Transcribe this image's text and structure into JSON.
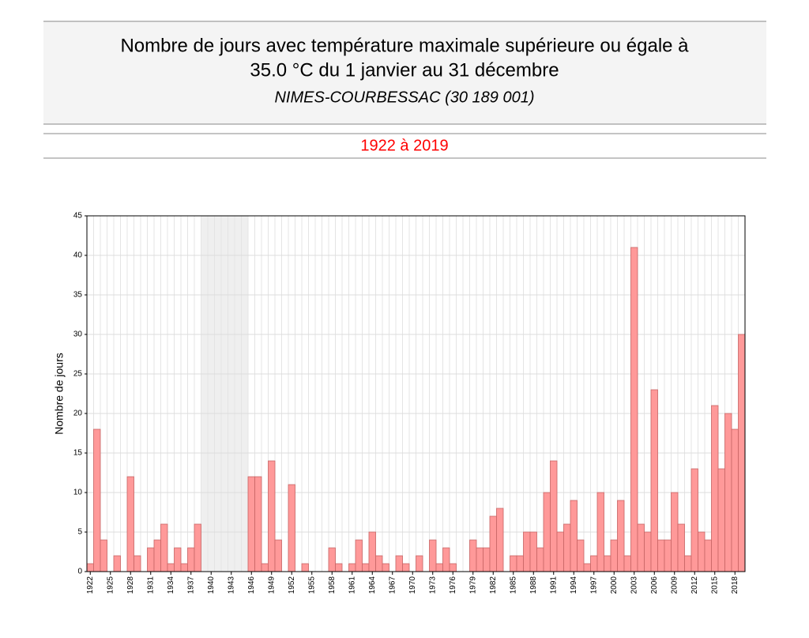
{
  "chart_data": {
    "type": "bar",
    "title_lines": [
      "Nombre de jours avec température maximale supérieure ou égale à",
      "35.0 °C du 1 janvier au 31 décembre"
    ],
    "subtitle": "NIMES-COURBESSAC (30 189 001)",
    "period": "1922 à 2019",
    "y_label": "Nombre de jours",
    "categories": [
      "1922",
      null,
      null,
      "1925",
      null,
      null,
      "1928",
      null,
      null,
      "1931",
      null,
      null,
      "1934",
      null,
      null,
      "1937",
      null,
      null,
      "1940",
      null,
      null,
      "1943",
      null,
      null,
      "1946",
      null,
      null,
      "1949",
      null,
      null,
      "1952",
      null,
      null,
      "1955",
      null,
      null,
      "1958",
      null,
      null,
      "1961",
      null,
      null,
      "1964",
      null,
      null,
      "1967",
      null,
      null,
      "1970",
      null,
      null,
      "1973",
      null,
      null,
      "1976",
      null,
      null,
      "1979",
      null,
      null,
      "1982",
      null,
      null,
      "1985",
      null,
      null,
      "1988",
      null,
      null,
      "1991",
      null,
      null,
      "1994",
      null,
      null,
      "1997",
      null,
      null,
      "2000",
      null,
      null,
      "2003",
      null,
      null,
      "2006",
      null,
      null,
      "2009",
      null,
      null,
      "2012",
      null,
      null,
      "2015",
      null,
      null,
      "2018",
      null
    ],
    "values": [
      1,
      18,
      4,
      0,
      2,
      0,
      12,
      2,
      0,
      3,
      4,
      6,
      1,
      3,
      1,
      3,
      6,
      null,
      null,
      null,
      null,
      null,
      null,
      null,
      12,
      12,
      1,
      14,
      4,
      0,
      11,
      0,
      1,
      0,
      0,
      0,
      3,
      1,
      0,
      1,
      4,
      1,
      5,
      2,
      1,
      0,
      2,
      1,
      0,
      2,
      0,
      4,
      1,
      3,
      1,
      0,
      0,
      4,
      3,
      3,
      7,
      8,
      0,
      2,
      2,
      5,
      5,
      3,
      10,
      14,
      5,
      6,
      9,
      4,
      1,
      2,
      10,
      2,
      4,
      9,
      2,
      41,
      6,
      5,
      23,
      4,
      4,
      10,
      6,
      2,
      13,
      5,
      4,
      21,
      13,
      20,
      18,
      30
    ],
    "color": "#ff9999",
    "ylim": [
      0,
      45
    ],
    "yticks": [
      0,
      5,
      10,
      15,
      20,
      25,
      30,
      35,
      40,
      45
    ],
    "grid": true
  }
}
